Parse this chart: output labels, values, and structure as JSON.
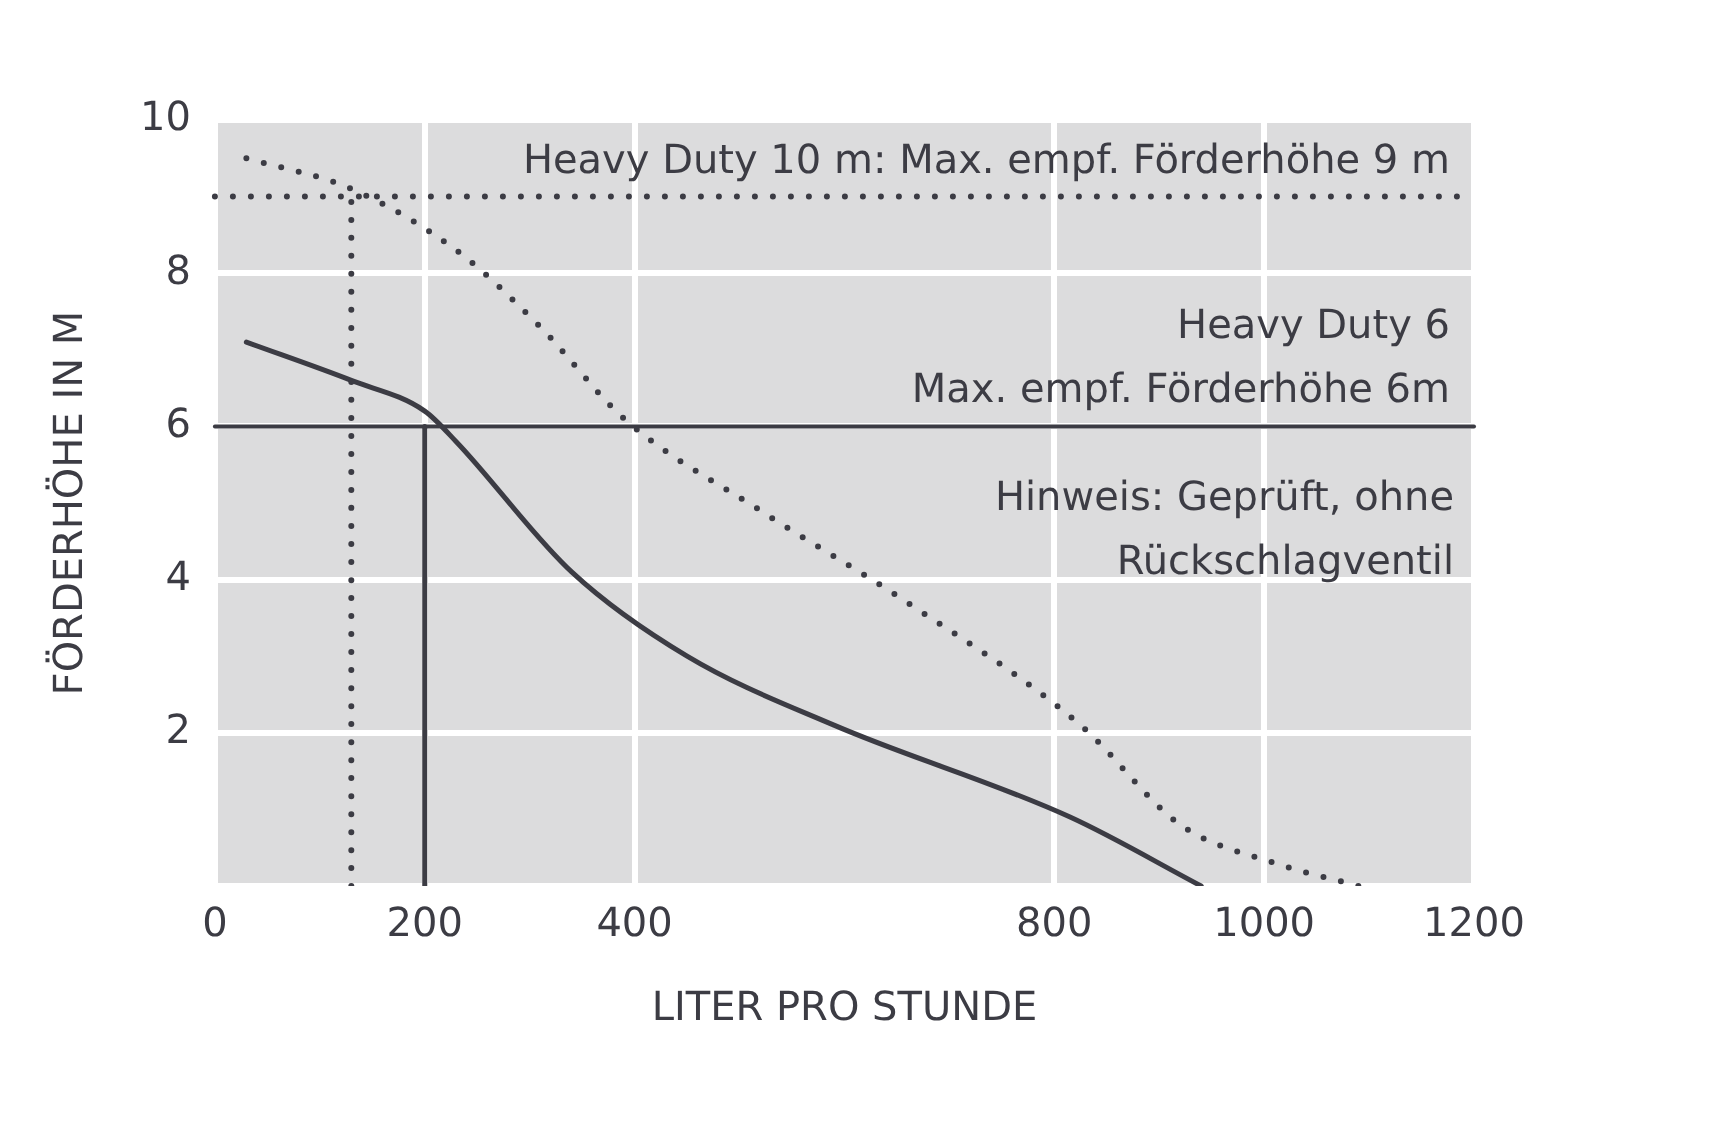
{
  "chart_data": {
    "type": "line",
    "xlabel": "LITER PRO STUNDE",
    "ylabel": "FÖRDERHÖHE IN M",
    "xlim": [
      0,
      1200
    ],
    "xticks": [
      0,
      200,
      400,
      800,
      1000,
      1200
    ],
    "ylim": [
      0,
      10
    ],
    "yticks": [
      {
        "value": 0,
        "label": null
      },
      2,
      4,
      6,
      8,
      10
    ],
    "grid": true,
    "legend": false,
    "marker": "none",
    "series": [
      {
        "color": "#3c3c44",
        "line_style": "solid",
        "x": [
          30,
          130,
          200,
          230,
          340,
          450,
          590,
          815,
          940
        ],
        "values": [
          7.1,
          6.6,
          6.2,
          5.8,
          4.1,
          3.0,
          2.1,
          0.9,
          0
        ]
      },
      {
        "color": "#3c3c44",
        "line_style": "dotted",
        "x": [
          30,
          130,
          230,
          310,
          390,
          520,
          660,
          825,
          920,
          1010,
          1090
        ],
        "values": [
          9.5,
          9.1,
          8.3,
          7.3,
          6.1,
          4.9,
          3.7,
          2.1,
          0.8,
          0.3,
          0
        ]
      },
      {
        "color": "#3c3c44",
        "line_style": "dotted",
        "x": [
          130,
          130
        ],
        "values": [
          0,
          9
        ]
      },
      {
        "color": "#3c3c44",
        "line_style": "solid",
        "x": [
          200,
          200
        ],
        "values": [
          0,
          6
        ]
      }
    ],
    "ref_lines": [
      {
        "axis": "y",
        "value": 9,
        "label": "Heavy Duty 10 m: Max. empf. Förderhöhe 9 m",
        "color": "#3c3c44",
        "line_style": "dotted"
      },
      {
        "axis": "y",
        "value": 6,
        "label": "Heavy Duty 6\nMax. empf. Förderhöhe 6m",
        "color": "#3c3c44",
        "line_style": "solid"
      }
    ],
    "annotations": [
      "Hinweis: Geprüft, ohne Rückschlagventil"
    ]
  }
}
